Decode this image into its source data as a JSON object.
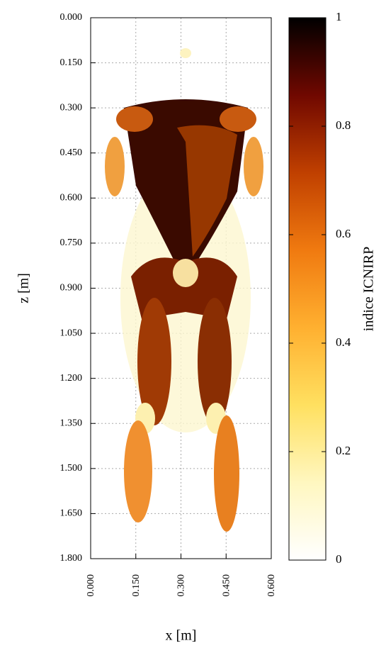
{
  "chart_data": {
    "type": "heatmap",
    "x_label": "x [m]",
    "y_label": "z [m]",
    "xlim": [
      0,
      0.6
    ],
    "ylim": [
      0,
      1.8
    ],
    "y_reversed": true,
    "grid": true,
    "xticks": [
      {
        "value": 0,
        "label": "0.000"
      },
      {
        "value": 0.15,
        "label": "0.150"
      },
      {
        "value": 0.3,
        "label": "0.300"
      },
      {
        "value": 0.45,
        "label": "0.450"
      },
      {
        "value": 0.6,
        "label": "0.600"
      }
    ],
    "yticks": [
      {
        "value": 0,
        "label": "0.000"
      },
      {
        "value": 0.15,
        "label": "0.150"
      },
      {
        "value": 0.3,
        "label": "0.300"
      },
      {
        "value": 0.45,
        "label": "0.450"
      },
      {
        "value": 0.6,
        "label": "0.600"
      },
      {
        "value": 0.75,
        "label": "0.750"
      },
      {
        "value": 0.9,
        "label": "0.900"
      },
      {
        "value": 1.05,
        "label": "1.050"
      },
      {
        "value": 1.2,
        "label": "1.200"
      },
      {
        "value": 1.35,
        "label": "1.350"
      },
      {
        "value": 1.5,
        "label": "1.500"
      },
      {
        "value": 1.65,
        "label": "1.650"
      },
      {
        "value": 1.8,
        "label": "1.800"
      }
    ],
    "colorbar": {
      "label": "indice ICNIRP",
      "lim": [
        0,
        1
      ],
      "ticks": [
        0,
        0.2,
        0.4,
        0.6,
        0.8,
        1
      ],
      "colors": [
        "#ffffff",
        "#fff7c0",
        "#ffe060",
        "#ffb030",
        "#f07a10",
        "#c04000",
        "#700800",
        "#000000"
      ]
    }
  }
}
